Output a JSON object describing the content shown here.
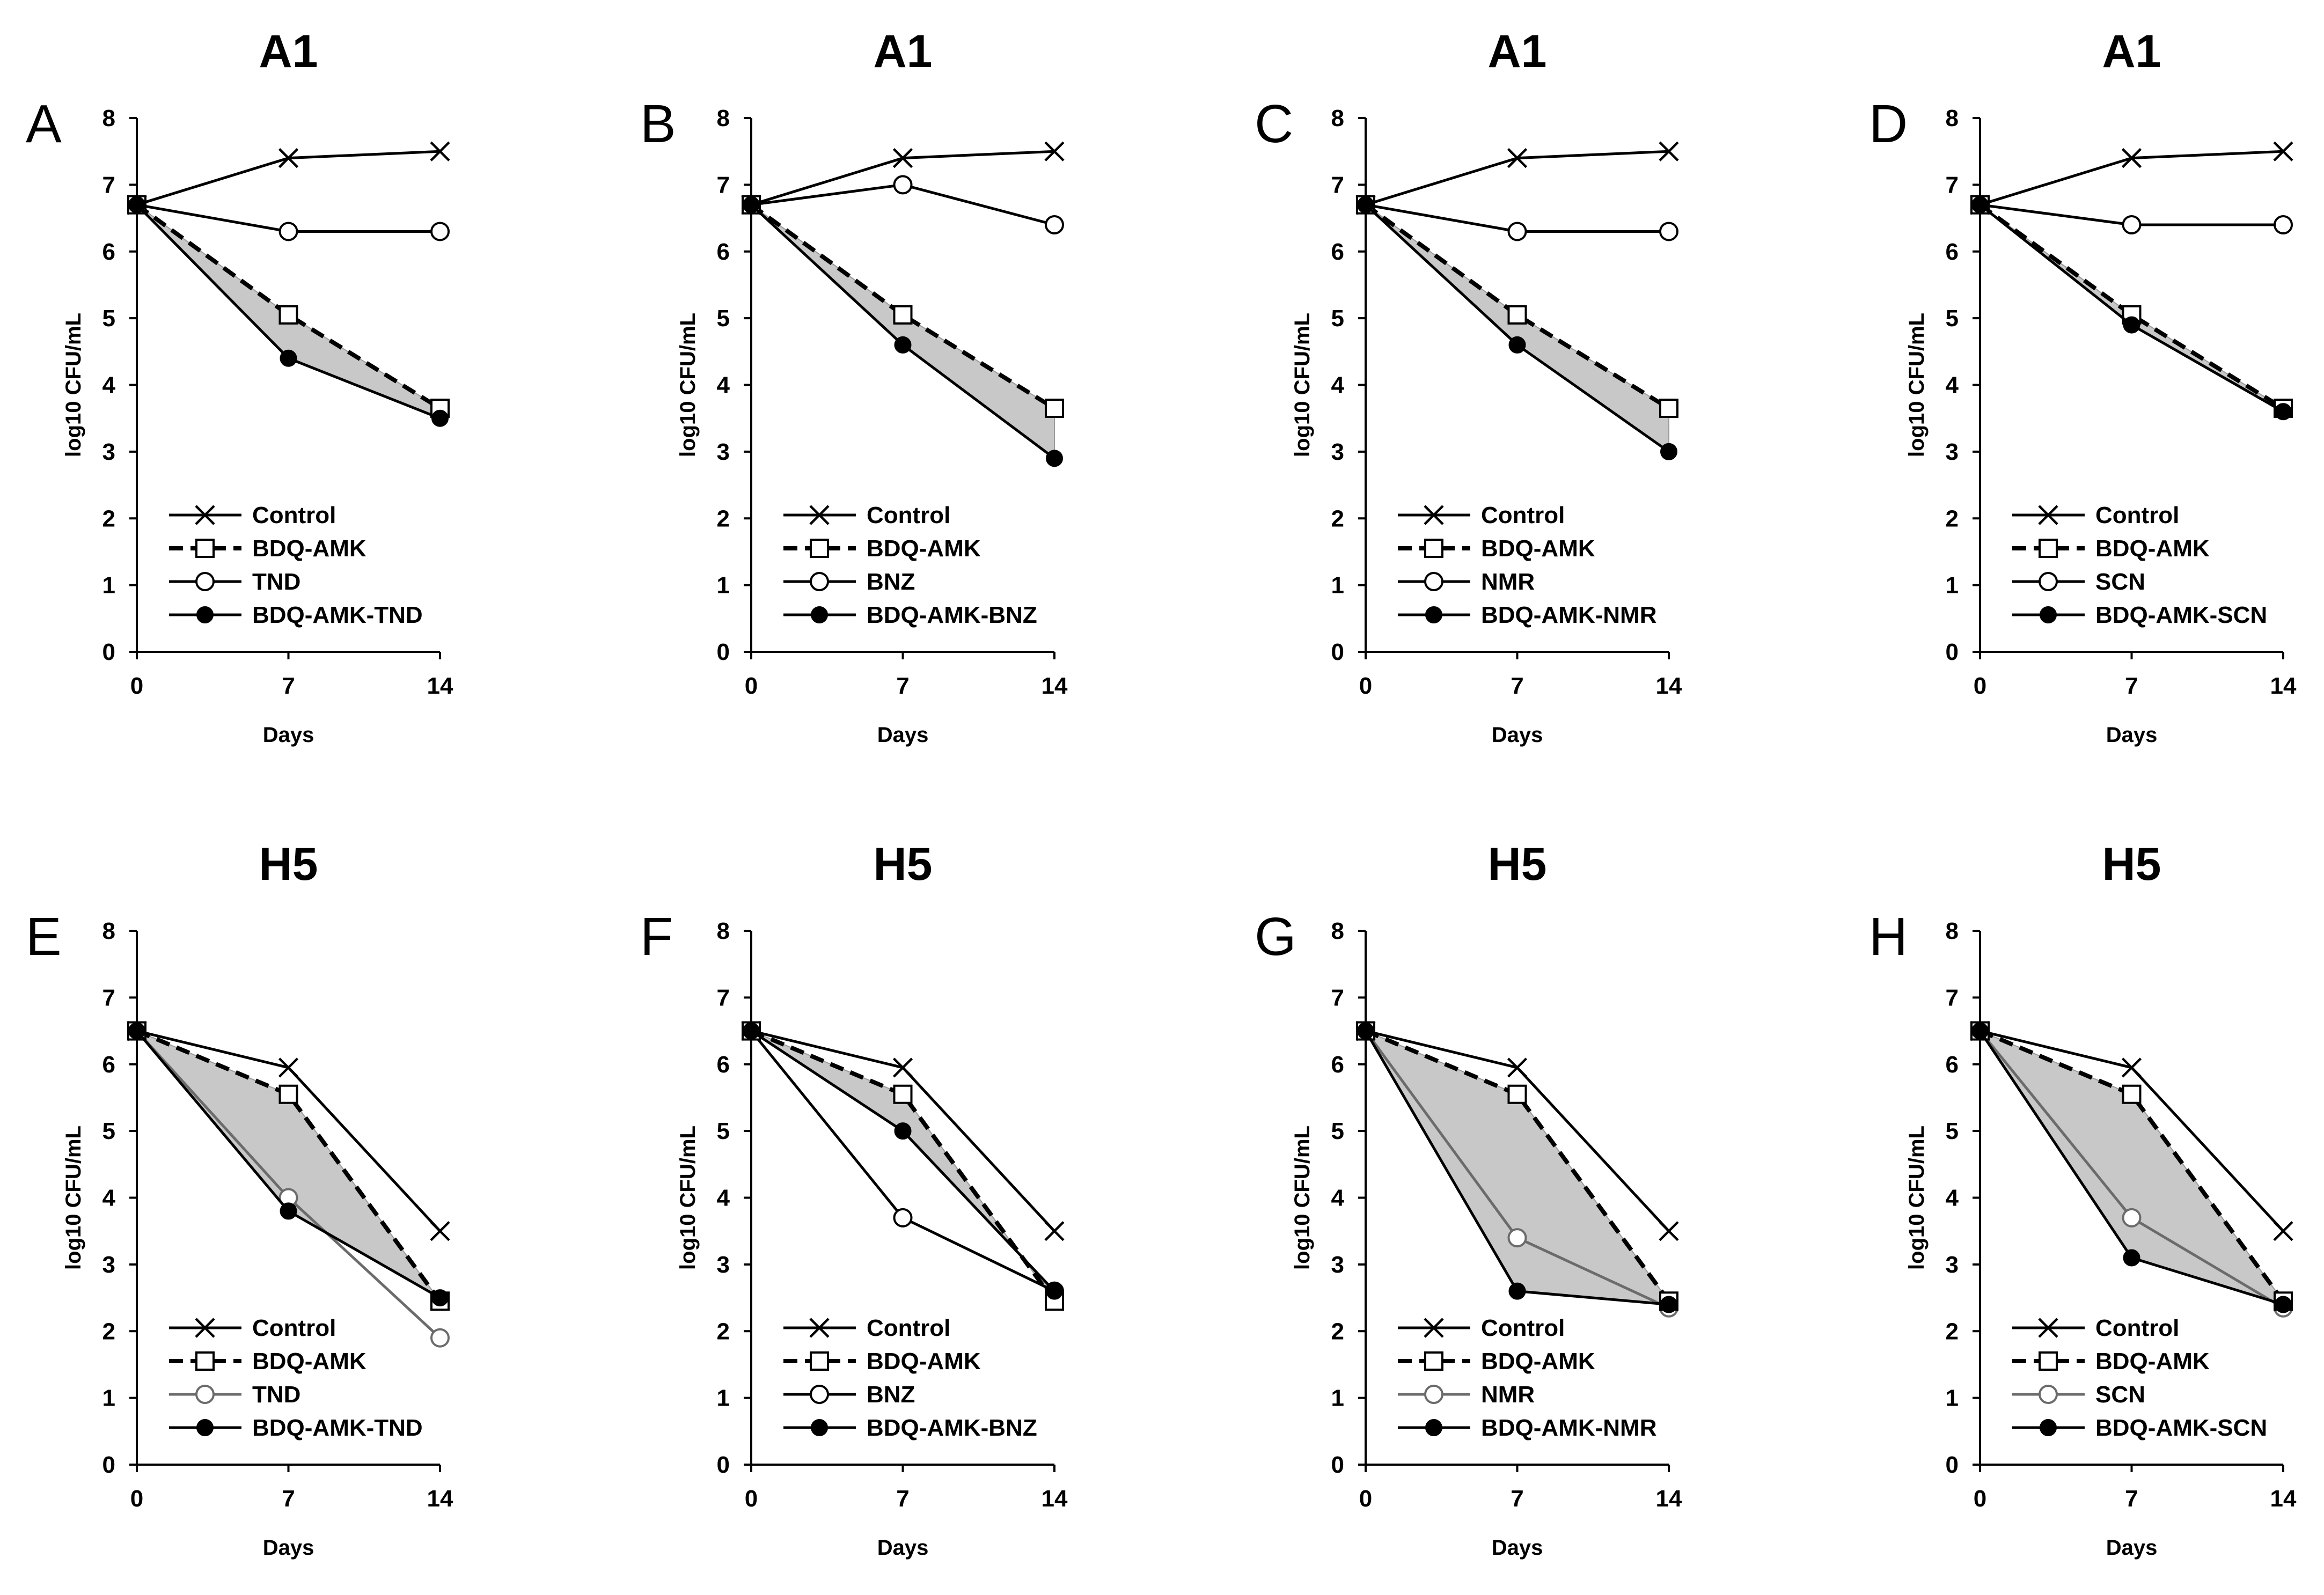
{
  "chart_data": [
    {
      "type": "line",
      "panel": "A",
      "title": "A1",
      "xlabel": "Days",
      "ylabel": "log10 CFU/mL",
      "x": [
        0,
        7,
        14
      ],
      "xticks": [
        0,
        7,
        14
      ],
      "yticks": [
        0,
        1,
        2,
        3,
        4,
        5,
        6,
        7,
        8
      ],
      "ylim": [
        0,
        8
      ],
      "shaded_between": [
        "BDQ-AMK",
        "BDQ-AMK-TND"
      ],
      "legend_position": "bottom-left",
      "series": [
        {
          "name": "Control",
          "values": [
            6.7,
            7.4,
            7.5
          ],
          "marker": "x",
          "line": "solid",
          "color": "#000000"
        },
        {
          "name": "BDQ-AMK",
          "values": [
            6.7,
            5.05,
            3.65
          ],
          "marker": "open-square",
          "line": "dashed",
          "color": "#000000"
        },
        {
          "name": "TND",
          "values": [
            6.7,
            6.3,
            6.3
          ],
          "marker": "open-circle",
          "line": "solid",
          "color": "#000000"
        },
        {
          "name": "BDQ-AMK-TND",
          "values": [
            6.7,
            4.4,
            3.5
          ],
          "marker": "filled-circle",
          "line": "solid",
          "color": "#000000"
        }
      ]
    },
    {
      "type": "line",
      "panel": "B",
      "title": "A1",
      "xlabel": "Days",
      "ylabel": "log10 CFU/mL",
      "x": [
        0,
        7,
        14
      ],
      "xticks": [
        0,
        7,
        14
      ],
      "yticks": [
        0,
        1,
        2,
        3,
        4,
        5,
        6,
        7,
        8
      ],
      "ylim": [
        0,
        8
      ],
      "shaded_between": [
        "BDQ-AMK",
        "BDQ-AMK-BNZ"
      ],
      "legend_position": "bottom-left",
      "series": [
        {
          "name": "Control",
          "values": [
            6.7,
            7.4,
            7.5
          ],
          "marker": "x",
          "line": "solid",
          "color": "#000000"
        },
        {
          "name": "BDQ-AMK",
          "values": [
            6.7,
            5.05,
            3.65
          ],
          "marker": "open-square",
          "line": "dashed",
          "color": "#000000"
        },
        {
          "name": "BNZ",
          "values": [
            6.7,
            7.0,
            6.4
          ],
          "marker": "open-circle",
          "line": "solid",
          "color": "#000000"
        },
        {
          "name": "BDQ-AMK-BNZ",
          "values": [
            6.7,
            4.6,
            2.9
          ],
          "marker": "filled-circle",
          "line": "solid",
          "color": "#000000"
        }
      ]
    },
    {
      "type": "line",
      "panel": "C",
      "title": "A1",
      "xlabel": "Days",
      "ylabel": "log10 CFU/mL",
      "x": [
        0,
        7,
        14
      ],
      "xticks": [
        0,
        7,
        14
      ],
      "yticks": [
        0,
        1,
        2,
        3,
        4,
        5,
        6,
        7,
        8
      ],
      "ylim": [
        0,
        8
      ],
      "shaded_between": [
        "BDQ-AMK",
        "BDQ-AMK-NMR"
      ],
      "legend_position": "bottom-left",
      "series": [
        {
          "name": "Control",
          "values": [
            6.7,
            7.4,
            7.5
          ],
          "marker": "x",
          "line": "solid",
          "color": "#000000"
        },
        {
          "name": "BDQ-AMK",
          "values": [
            6.7,
            5.05,
            3.65
          ],
          "marker": "open-square",
          "line": "dashed",
          "color": "#000000"
        },
        {
          "name": "NMR",
          "values": [
            6.7,
            6.3,
            6.3
          ],
          "marker": "open-circle",
          "line": "solid",
          "color": "#000000"
        },
        {
          "name": "BDQ-AMK-NMR",
          "values": [
            6.7,
            4.6,
            3.0
          ],
          "marker": "filled-circle",
          "line": "solid",
          "color": "#000000"
        }
      ]
    },
    {
      "type": "line",
      "panel": "D",
      "title": "A1",
      "xlabel": "Days",
      "ylabel": "log10 CFU/mL",
      "x": [
        0,
        7,
        14
      ],
      "xticks": [
        0,
        7,
        14
      ],
      "yticks": [
        0,
        1,
        2,
        3,
        4,
        5,
        6,
        7,
        8
      ],
      "ylim": [
        0,
        8
      ],
      "shaded_between": [
        "BDQ-AMK",
        "BDQ-AMK-SCN"
      ],
      "legend_position": "bottom-left",
      "series": [
        {
          "name": "Control",
          "values": [
            6.7,
            7.4,
            7.5
          ],
          "marker": "x",
          "line": "solid",
          "color": "#000000"
        },
        {
          "name": "BDQ-AMK",
          "values": [
            6.7,
            5.05,
            3.65
          ],
          "marker": "open-square",
          "line": "dashed",
          "color": "#000000"
        },
        {
          "name": "SCN",
          "values": [
            6.7,
            6.4,
            6.4
          ],
          "marker": "open-circle",
          "line": "solid",
          "color": "#000000"
        },
        {
          "name": "BDQ-AMK-SCN",
          "values": [
            6.7,
            4.9,
            3.6
          ],
          "marker": "filled-circle",
          "line": "solid",
          "color": "#000000"
        }
      ]
    },
    {
      "type": "line",
      "panel": "E",
      "title": "H5",
      "xlabel": "Days",
      "ylabel": "log10 CFU/mL",
      "x": [
        0,
        7,
        14
      ],
      "xticks": [
        0,
        7,
        14
      ],
      "yticks": [
        0,
        1,
        2,
        3,
        4,
        5,
        6,
        7,
        8
      ],
      "ylim": [
        0,
        8
      ],
      "shaded_between": [
        "BDQ-AMK",
        "BDQ-AMK-TND"
      ],
      "legend_position": "bottom-left",
      "series": [
        {
          "name": "Control",
          "values": [
            6.5,
            5.95,
            3.5
          ],
          "marker": "x",
          "line": "solid",
          "color": "#000000"
        },
        {
          "name": "BDQ-AMK",
          "values": [
            6.5,
            5.55,
            2.45
          ],
          "marker": "open-square",
          "line": "dashed",
          "color": "#000000"
        },
        {
          "name": "TND",
          "values": [
            6.5,
            4.0,
            1.9
          ],
          "marker": "open-circle",
          "line": "solid",
          "color": "#6b6b6b"
        },
        {
          "name": "BDQ-AMK-TND",
          "values": [
            6.5,
            3.8,
            2.5
          ],
          "marker": "filled-circle",
          "line": "solid",
          "color": "#000000"
        }
      ]
    },
    {
      "type": "line",
      "panel": "F",
      "title": "H5",
      "xlabel": "Days",
      "ylabel": "log10 CFU/mL",
      "x": [
        0,
        7,
        14
      ],
      "xticks": [
        0,
        7,
        14
      ],
      "yticks": [
        0,
        1,
        2,
        3,
        4,
        5,
        6,
        7,
        8
      ],
      "ylim": [
        0,
        8
      ],
      "shaded_between": [
        "BDQ-AMK",
        "BDQ-AMK-BNZ"
      ],
      "legend_position": "bottom-left",
      "series": [
        {
          "name": "Control",
          "values": [
            6.5,
            5.95,
            3.5
          ],
          "marker": "x",
          "line": "solid",
          "color": "#000000"
        },
        {
          "name": "BDQ-AMK",
          "values": [
            6.5,
            5.55,
            2.45
          ],
          "marker": "open-square",
          "line": "dashed",
          "color": "#000000"
        },
        {
          "name": "BNZ",
          "values": [
            6.5,
            3.7,
            2.6
          ],
          "marker": "open-circle",
          "line": "solid",
          "color": "#000000"
        },
        {
          "name": "BDQ-AMK-BNZ",
          "values": [
            6.5,
            5.0,
            2.6
          ],
          "marker": "filled-circle",
          "line": "solid",
          "color": "#000000"
        }
      ]
    },
    {
      "type": "line",
      "panel": "G",
      "title": "H5",
      "xlabel": "Days",
      "ylabel": "log10 CFU/mL",
      "x": [
        0,
        7,
        14
      ],
      "xticks": [
        0,
        7,
        14
      ],
      "yticks": [
        0,
        1,
        2,
        3,
        4,
        5,
        6,
        7,
        8
      ],
      "ylim": [
        0,
        8
      ],
      "shaded_between": [
        "BDQ-AMK",
        "BDQ-AMK-NMR"
      ],
      "legend_position": "bottom-left",
      "series": [
        {
          "name": "Control",
          "values": [
            6.5,
            5.95,
            3.5
          ],
          "marker": "x",
          "line": "solid",
          "color": "#000000"
        },
        {
          "name": "BDQ-AMK",
          "values": [
            6.5,
            5.55,
            2.45
          ],
          "marker": "open-square",
          "line": "dashed",
          "color": "#000000"
        },
        {
          "name": "NMR",
          "values": [
            6.5,
            3.4,
            2.35
          ],
          "marker": "open-circle",
          "line": "solid",
          "color": "#6b6b6b"
        },
        {
          "name": "BDQ-AMK-NMR",
          "values": [
            6.5,
            2.6,
            2.4
          ],
          "marker": "filled-circle",
          "line": "solid",
          "color": "#000000"
        }
      ]
    },
    {
      "type": "line",
      "panel": "H",
      "title": "H5",
      "xlabel": "Days",
      "ylabel": "log10 CFU/mL",
      "x": [
        0,
        7,
        14
      ],
      "xticks": [
        0,
        7,
        14
      ],
      "yticks": [
        0,
        1,
        2,
        3,
        4,
        5,
        6,
        7,
        8
      ],
      "ylim": [
        0,
        8
      ],
      "shaded_between": [
        "BDQ-AMK",
        "BDQ-AMK-SCN"
      ],
      "legend_position": "bottom-left",
      "series": [
        {
          "name": "Control",
          "values": [
            6.5,
            5.95,
            3.5
          ],
          "marker": "x",
          "line": "solid",
          "color": "#000000"
        },
        {
          "name": "BDQ-AMK",
          "values": [
            6.5,
            5.55,
            2.45
          ],
          "marker": "open-square",
          "line": "dashed",
          "color": "#000000"
        },
        {
          "name": "SCN",
          "values": [
            6.5,
            3.7,
            2.35
          ],
          "marker": "open-circle",
          "line": "solid",
          "color": "#6b6b6b"
        },
        {
          "name": "BDQ-AMK-SCN",
          "values": [
            6.5,
            3.1,
            2.4
          ],
          "marker": "filled-circle",
          "line": "solid",
          "color": "#000000"
        }
      ]
    }
  ],
  "colors": {
    "shade": "#c8c8c8",
    "line": "#000000",
    "axis": "#000000"
  }
}
